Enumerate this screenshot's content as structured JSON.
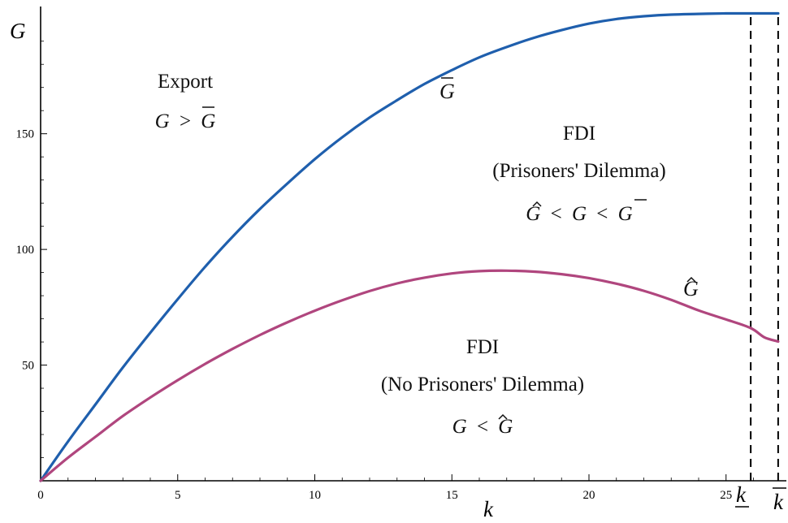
{
  "chart_data": {
    "type": "line",
    "title": "",
    "xlabel": "k",
    "ylabel": "G",
    "xlim": [
      0,
      27.2
    ],
    "ylim": [
      0,
      205
    ],
    "x_ticks": [
      0,
      5,
      10,
      15,
      20,
      25
    ],
    "x_tick_labels": [
      "0",
      "5",
      "10",
      "15",
      "20",
      "25"
    ],
    "y_ticks": [
      50,
      100,
      150
    ],
    "y_tick_labels": [
      "50",
      "100",
      "150"
    ],
    "grid": false,
    "legend": "none",
    "series": [
      {
        "name": "G-bar",
        "label_base": "G",
        "label_accent": "bar",
        "color": "#1f5fad",
        "x": [
          0,
          1,
          2,
          3,
          4,
          5,
          6,
          7,
          8,
          9,
          10,
          11,
          12,
          13,
          14,
          15,
          16,
          17,
          18,
          19,
          20,
          21,
          22,
          23,
          24,
          25,
          25.9,
          26.9
        ],
        "y": [
          0,
          17,
          33,
          49,
          64,
          78.5,
          92.5,
          105.5,
          117.5,
          128.5,
          139,
          148.5,
          157,
          164.5,
          171.5,
          177.5,
          183,
          187.5,
          191.5,
          194.8,
          197.6,
          199.6,
          200.8,
          201.5,
          201.8,
          202,
          202,
          202
        ]
      },
      {
        "name": "G-hat",
        "label_base": "G",
        "label_accent": "hat",
        "color": "#b0467e",
        "x": [
          0,
          1,
          2,
          3,
          4,
          5,
          6,
          7,
          8,
          9,
          10,
          11,
          12,
          13,
          14,
          15,
          16,
          17,
          18,
          19,
          20,
          21,
          22,
          23,
          24,
          25,
          25.9,
          26.4,
          26.9
        ],
        "y": [
          0,
          10,
          19,
          28,
          36,
          43.5,
          50.5,
          57,
          63,
          68.5,
          73.5,
          78,
          82,
          85.3,
          87.8,
          89.6,
          90.6,
          90.8,
          90.4,
          89.3,
          87.6,
          85.2,
          82.1,
          78.2,
          73.6,
          69.7,
          66,
          62,
          60.2
        ]
      }
    ],
    "vertical_lines": [
      {
        "x": 25.9,
        "style": "dashed",
        "tick_label": "k",
        "mark": "underline"
      },
      {
        "x": 26.9,
        "style": "dashed",
        "tick_label": "k",
        "mark": "overline"
      }
    ],
    "annotations": [
      {
        "id": "export",
        "lines": [
          "Export",
          "G > Ḡ"
        ]
      },
      {
        "id": "fdi_pd",
        "lines": [
          "FDI",
          "(Prisoners' Dilemma)",
          "Ĝ < G < Ḡ"
        ]
      },
      {
        "id": "fdi_nopd",
        "lines": [
          "FDI",
          "(No Prisoners' Dilemma)",
          "G < Ĝ"
        ]
      }
    ],
    "text": {
      "export_title": "Export",
      "fdi_title": "FDI",
      "pd_title": "(Prisoners' Dilemma)",
      "nopd_title": "(No Prisoners' Dilemma)",
      "sym_G": "G",
      "sym_gt": ">",
      "sym_lt": "<"
    }
  }
}
